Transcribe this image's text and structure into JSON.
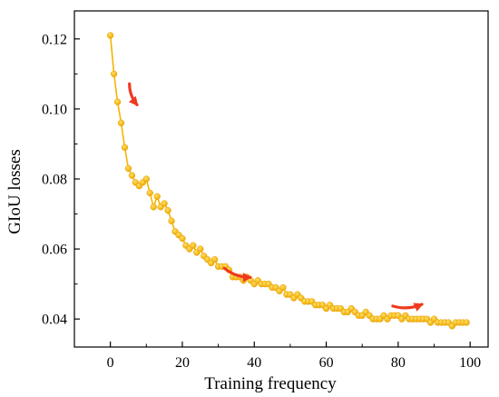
{
  "chart_data": {
    "type": "line",
    "title": "",
    "xlabel": "Training frequency",
    "ylabel": "GIoU losses",
    "xlim": [
      -10,
      105
    ],
    "ylim": [
      0.032,
      0.128
    ],
    "x_ticks": [
      0,
      20,
      40,
      60,
      80,
      100
    ],
    "y_ticks": [
      0.04,
      0.06,
      0.08,
      0.1,
      0.12
    ],
    "y_tick_labels": [
      "0.04",
      "0.06",
      "0.08",
      "0.10",
      "0.12"
    ],
    "x_tick_labels": [
      "0",
      "20",
      "40",
      "60",
      "80",
      "100"
    ],
    "grid": false,
    "legend": "none",
    "colors": {
      "series": "#f5b400",
      "marker_edge": "#e8a000",
      "arrow": "#ee3a1f"
    },
    "series": [
      {
        "x": [
          0,
          1,
          2,
          3,
          4,
          5,
          6,
          7,
          8,
          9,
          10,
          11,
          12,
          13,
          14,
          15,
          16,
          17,
          18,
          19,
          20,
          21,
          22,
          23,
          24,
          25,
          26,
          27,
          28,
          29,
          30,
          31,
          32,
          33,
          34,
          35,
          36,
          37,
          38,
          39,
          40,
          41,
          42,
          43,
          44,
          45,
          46,
          47,
          48,
          49,
          50,
          51,
          52,
          53,
          54,
          55,
          56,
          57,
          58,
          59,
          60,
          61,
          62,
          63,
          64,
          65,
          66,
          67,
          68,
          69,
          70,
          71,
          72,
          73,
          74,
          75,
          76,
          77,
          78,
          79,
          80,
          81,
          82,
          83,
          84,
          85,
          86,
          87,
          88,
          89,
          90,
          91,
          92,
          93,
          94,
          95,
          96,
          97,
          98,
          99
        ],
        "y": [
          0.121,
          0.11,
          0.102,
          0.096,
          0.089,
          0.083,
          0.081,
          0.079,
          0.078,
          0.079,
          0.08,
          0.076,
          0.072,
          0.075,
          0.072,
          0.073,
          0.071,
          0.068,
          0.065,
          0.064,
          0.063,
          0.061,
          0.06,
          0.061,
          0.059,
          0.06,
          0.058,
          0.057,
          0.056,
          0.057,
          0.055,
          0.055,
          0.055,
          0.054,
          0.052,
          0.052,
          0.052,
          0.051,
          0.052,
          0.051,
          0.05,
          0.051,
          0.05,
          0.05,
          0.05,
          0.049,
          0.049,
          0.048,
          0.049,
          0.047,
          0.047,
          0.046,
          0.047,
          0.046,
          0.045,
          0.045,
          0.045,
          0.044,
          0.044,
          0.044,
          0.043,
          0.044,
          0.043,
          0.043,
          0.043,
          0.042,
          0.042,
          0.043,
          0.042,
          0.041,
          0.041,
          0.042,
          0.041,
          0.04,
          0.04,
          0.04,
          0.041,
          0.04,
          0.041,
          0.041,
          0.041,
          0.04,
          0.041,
          0.04,
          0.04,
          0.04,
          0.04,
          0.04,
          0.04,
          0.039,
          0.04,
          0.039,
          0.039,
          0.039,
          0.039,
          0.038,
          0.039,
          0.039,
          0.039,
          0.039
        ]
      }
    ],
    "arrows": [
      {
        "x1": 5.3,
        "y1": 0.1072,
        "x2": 7.4,
        "y2": 0.1012
      },
      {
        "x1": 31.7,
        "y1": 0.0545,
        "x2": 38.9,
        "y2": 0.0519
      },
      {
        "x1": 78.5,
        "y1": 0.0437,
        "x2": 86.6,
        "y2": 0.0442
      }
    ]
  }
}
